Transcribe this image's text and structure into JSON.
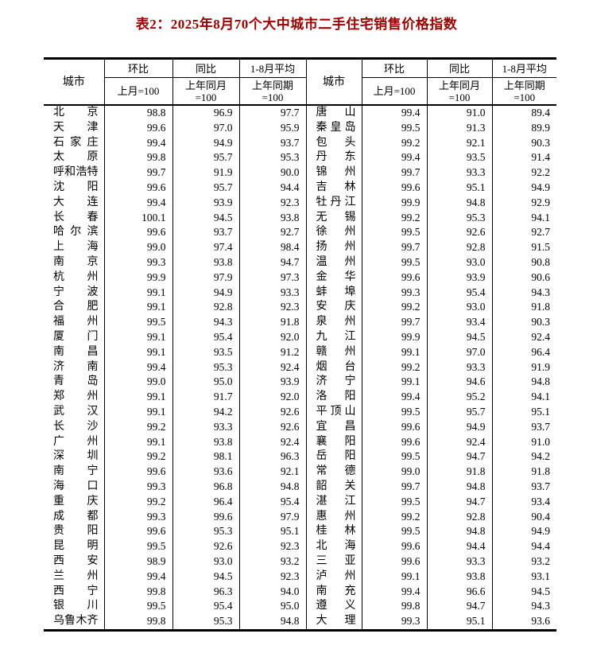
{
  "title": "表2：2025年8月70个大中城市二手住宅销售价格指数",
  "colors": {
    "title": "#990000",
    "border": "#000000",
    "background": "#ffffff"
  },
  "table": {
    "header": {
      "city": "城市",
      "mom_label": "环比",
      "mom_sub": "上月=100",
      "yoy_label": "同比",
      "yoy_sub": "上年同月\n=100",
      "avg_label": "1-8月平均",
      "avg_sub": "上年同期\n=100"
    },
    "left": [
      [
        "北京",
        "98.8",
        "96.9",
        "97.7"
      ],
      [
        "天津",
        "99.6",
        "97.0",
        "95.9"
      ],
      [
        "石家庄",
        "99.4",
        "94.9",
        "93.7"
      ],
      [
        "太原",
        "99.8",
        "95.7",
        "95.3"
      ],
      [
        "呼和浩特",
        "99.7",
        "91.9",
        "90.0"
      ],
      [
        "沈阳",
        "99.6",
        "95.7",
        "94.4"
      ],
      [
        "大连",
        "99.4",
        "93.9",
        "92.3"
      ],
      [
        "长春",
        "100.1",
        "94.5",
        "93.8"
      ],
      [
        "哈尔滨",
        "99.6",
        "93.7",
        "92.7"
      ],
      [
        "上海",
        "99.0",
        "97.4",
        "98.4"
      ],
      [
        "南京",
        "99.3",
        "93.8",
        "94.7"
      ],
      [
        "杭州",
        "99.9",
        "97.9",
        "97.3"
      ],
      [
        "宁波",
        "99.1",
        "94.9",
        "93.3"
      ],
      [
        "合肥",
        "99.1",
        "92.8",
        "92.3"
      ],
      [
        "福州",
        "99.5",
        "94.3",
        "91.8"
      ],
      [
        "厦门",
        "99.1",
        "95.4",
        "92.0"
      ],
      [
        "南昌",
        "99.1",
        "93.5",
        "91.2"
      ],
      [
        "济南",
        "99.4",
        "95.3",
        "92.4"
      ],
      [
        "青岛",
        "99.0",
        "95.0",
        "93.9"
      ],
      [
        "郑州",
        "99.1",
        "91.7",
        "92.0"
      ],
      [
        "武汉",
        "99.1",
        "94.2",
        "92.6"
      ],
      [
        "长沙",
        "99.2",
        "93.3",
        "92.6"
      ],
      [
        "广州",
        "99.1",
        "93.8",
        "92.4"
      ],
      [
        "深圳",
        "99.2",
        "98.1",
        "96.3"
      ],
      [
        "南宁",
        "99.6",
        "93.6",
        "92.1"
      ],
      [
        "海口",
        "99.3",
        "96.8",
        "94.8"
      ],
      [
        "重庆",
        "99.2",
        "96.4",
        "95.4"
      ],
      [
        "成都",
        "99.3",
        "99.6",
        "97.9"
      ],
      [
        "贵阳",
        "99.6",
        "95.3",
        "95.1"
      ],
      [
        "昆明",
        "99.5",
        "92.6",
        "92.3"
      ],
      [
        "西安",
        "98.9",
        "93.0",
        "93.2"
      ],
      [
        "兰州",
        "99.4",
        "94.5",
        "92.3"
      ],
      [
        "西宁",
        "99.8",
        "96.3",
        "94.0"
      ],
      [
        "银川",
        "99.5",
        "95.4",
        "95.0"
      ],
      [
        "乌鲁木齐",
        "99.8",
        "95.3",
        "94.8"
      ]
    ],
    "right": [
      [
        "唐山",
        "99.4",
        "91.0",
        "89.4"
      ],
      [
        "秦皇岛",
        "99.5",
        "91.3",
        "89.9"
      ],
      [
        "包头",
        "99.2",
        "92.1",
        "90.3"
      ],
      [
        "丹东",
        "99.4",
        "93.5",
        "91.4"
      ],
      [
        "锦州",
        "99.7",
        "93.3",
        "92.2"
      ],
      [
        "吉林",
        "99.6",
        "95.1",
        "94.9"
      ],
      [
        "牡丹江",
        "99.9",
        "94.8",
        "92.9"
      ],
      [
        "无锡",
        "99.2",
        "95.3",
        "94.1"
      ],
      [
        "徐州",
        "99.5",
        "92.6",
        "92.7"
      ],
      [
        "扬州",
        "99.7",
        "92.8",
        "91.5"
      ],
      [
        "温州",
        "99.5",
        "93.0",
        "90.8"
      ],
      [
        "金华",
        "99.6",
        "93.9",
        "90.6"
      ],
      [
        "蚌埠",
        "99.3",
        "95.4",
        "94.3"
      ],
      [
        "安庆",
        "99.2",
        "93.0",
        "91.8"
      ],
      [
        "泉州",
        "99.7",
        "93.4",
        "90.3"
      ],
      [
        "九江",
        "99.9",
        "94.5",
        "92.4"
      ],
      [
        "赣州",
        "99.1",
        "97.0",
        "96.4"
      ],
      [
        "烟台",
        "99.2",
        "93.3",
        "91.9"
      ],
      [
        "济宁",
        "99.1",
        "94.6",
        "94.8"
      ],
      [
        "洛阳",
        "99.4",
        "95.2",
        "94.1"
      ],
      [
        "平顶山",
        "99.5",
        "95.7",
        "95.1"
      ],
      [
        "宜昌",
        "99.6",
        "94.9",
        "93.7"
      ],
      [
        "襄阳",
        "99.6",
        "92.4",
        "91.0"
      ],
      [
        "岳阳",
        "99.5",
        "94.7",
        "94.2"
      ],
      [
        "常德",
        "99.0",
        "91.8",
        "91.8"
      ],
      [
        "韶关",
        "99.7",
        "94.8",
        "93.7"
      ],
      [
        "湛江",
        "99.5",
        "94.7",
        "93.4"
      ],
      [
        "惠州",
        "99.2",
        "92.8",
        "90.4"
      ],
      [
        "桂林",
        "99.5",
        "94.8",
        "94.9"
      ],
      [
        "北海",
        "99.6",
        "94.4",
        "94.4"
      ],
      [
        "三亚",
        "99.6",
        "93.3",
        "93.2"
      ],
      [
        "泸州",
        "99.1",
        "93.8",
        "93.1"
      ],
      [
        "南充",
        "99.4",
        "96.6",
        "94.5"
      ],
      [
        "遵义",
        "99.8",
        "94.7",
        "94.3"
      ],
      [
        "大理",
        "99.3",
        "95.1",
        "93.6"
      ]
    ]
  }
}
